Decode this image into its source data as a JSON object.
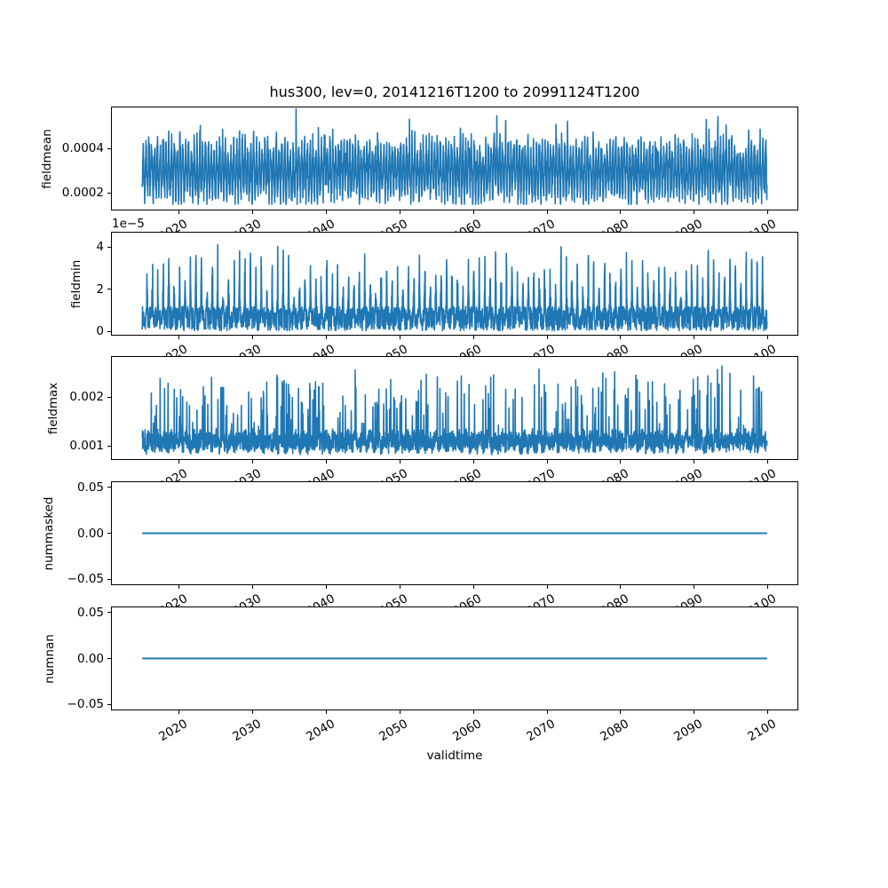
{
  "title": "hus300, lev=0, 20141216T1200 to 20991124T1200",
  "colors": {
    "line": "#1f77b4",
    "axes_edge": "#000000",
    "text": "#000000",
    "background": "#ffffff"
  },
  "x_axis": {
    "label": "validtime",
    "tick_values": [
      2020,
      2030,
      2040,
      2050,
      2060,
      2070,
      2080,
      2090,
      2100
    ],
    "tick_labels": [
      "2020",
      "2030",
      "2040",
      "2050",
      "2060",
      "2070",
      "2080",
      "2090",
      "2100"
    ],
    "lim": [
      2010.71,
      2104.15
    ],
    "data_start": 2014.96,
    "data_end": 2099.9
  },
  "chart_data": [
    {
      "type": "line",
      "name": "fieldmean",
      "ylabel": "fieldmean",
      "ylim": [
        0.00012,
        0.000588
      ],
      "yticks": [
        {
          "value": 0.0002,
          "label": "0.0002"
        },
        {
          "value": 0.0004,
          "label": "0.0004"
        }
      ],
      "approx": {
        "min": 0.00015,
        "max": 0.00057,
        "mean": 0.0003,
        "pattern": "dense quasi-seasonal oscillation between ~0.00017 and ~0.00045 with occasional peaks to ~0.00057 over 2015-2100"
      },
      "synthesis": {
        "kind": "band_osc",
        "mid": 0.0003,
        "amp": 0.000105,
        "freq": 2.6,
        "noise": 5e-05,
        "spike": 0.00012,
        "spike_prob": 0.012,
        "clip": [
          0.000148,
          0.000578
        ],
        "seed": 42
      }
    },
    {
      "type": "line",
      "name": "fieldmin",
      "ylabel": "fieldmin",
      "offset_text": "1e−5",
      "ylim": [
        -2.1e-06,
        4.72e-05
      ],
      "yticks": [
        {
          "value": 0,
          "label": "0"
        },
        {
          "value": 2e-05,
          "label": "2"
        },
        {
          "value": 4e-05,
          "label": "4"
        }
      ],
      "approx": {
        "min": 3e-07,
        "max": 4.5e-05,
        "pattern": "floor band 0 to 1.2e-5 with ~1.3 narrow spikes per year reaching 2e-5 to 4.5e-5"
      },
      "synthesis": {
        "kind": "spiky_floor",
        "floor": 3e-07,
        "band": 1.15e-05,
        "freq": 1.35,
        "phase": 0.2,
        "sharp": 6,
        "smin": 6e-06,
        "smax": 3.2e-05,
        "clip": [
          2e-07,
          4.55e-05
        ],
        "seed": 7
      }
    },
    {
      "type": "line",
      "name": "fieldmax",
      "ylabel": "fieldmax",
      "ylim": [
        0.00071,
        0.00284
      ],
      "yticks": [
        {
          "value": 0.001,
          "label": "0.001"
        },
        {
          "value": 0.002,
          "label": "0.002"
        }
      ],
      "approx": {
        "min": 0.00082,
        "max": 0.00275,
        "pattern": "noisy band 0.0009-0.0014 with irregular narrow spikes to 0.002-0.0028, roughly 2-3 per year"
      },
      "synthesis": {
        "kind": "spiky_band",
        "base": 0.00088,
        "band": 0.00042,
        "seas": 6e-05,
        "prob": 0.08,
        "smin": 0.0003,
        "smax": 0.0014,
        "clip": [
          0.00082,
          0.00276
        ],
        "seed": 13
      }
    },
    {
      "type": "line",
      "name": "nummasked",
      "ylabel": "nummasked",
      "ylim": [
        -0.0566,
        0.0566
      ],
      "yticks": [
        {
          "value": -0.05,
          "label": "−0.05"
        },
        {
          "value": 0,
          "label": "0.00"
        },
        {
          "value": 0.05,
          "label": "0.05"
        }
      ],
      "approx": {
        "constant": 0,
        "pattern": "flat line at 0 for entire period"
      },
      "synthesis": {
        "kind": "const",
        "value": 0
      }
    },
    {
      "type": "line",
      "name": "numnan",
      "ylabel": "numnan",
      "ylim": [
        -0.0566,
        0.0566
      ],
      "yticks": [
        {
          "value": -0.05,
          "label": "−0.05"
        },
        {
          "value": 0,
          "label": "0.00"
        },
        {
          "value": 0.05,
          "label": "0.05"
        }
      ],
      "approx": {
        "constant": 0,
        "pattern": "flat line at 0 for entire period"
      },
      "synthesis": {
        "kind": "const",
        "value": 0
      }
    }
  ]
}
